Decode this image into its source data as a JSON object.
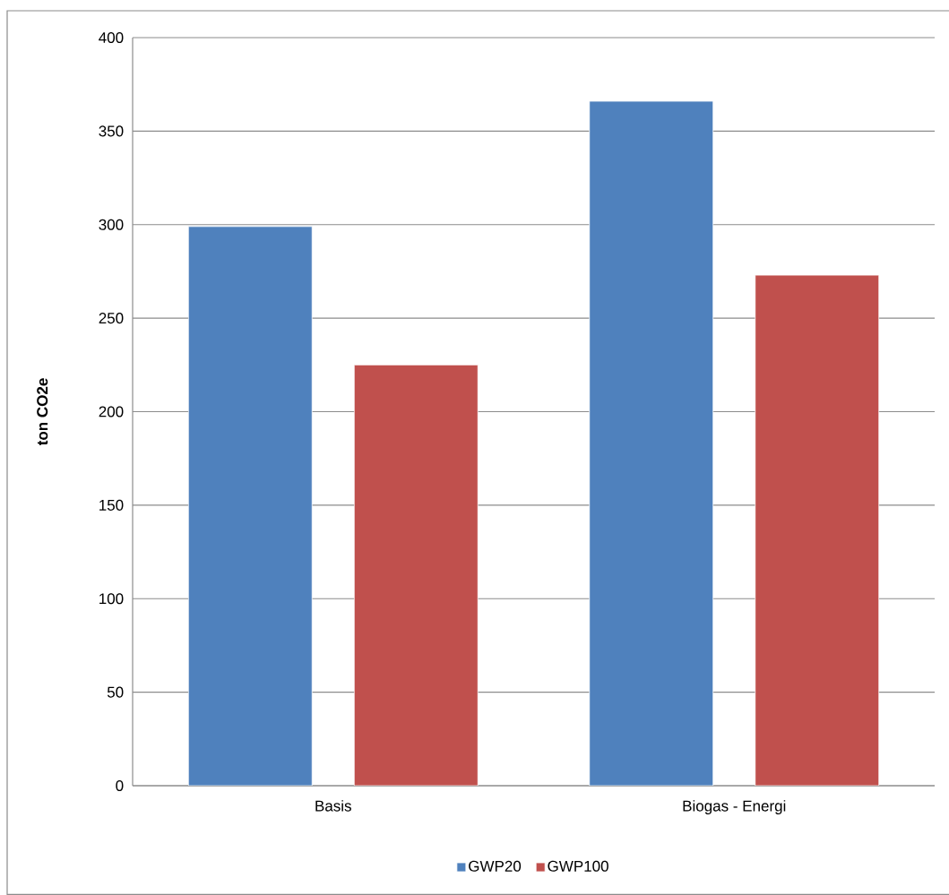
{
  "chart_data": {
    "type": "bar",
    "ylabel": "ton CO2e",
    "categories": [
      "Basis",
      "Biogas - Energi"
    ],
    "series": [
      {
        "name": "GWP20",
        "color": "#4f81bd",
        "values": [
          299,
          366
        ]
      },
      {
        "name": "GWP100",
        "color": "#c0504d",
        "values": [
          225,
          273
        ]
      }
    ],
    "ylim": [
      0,
      400
    ],
    "yticks": [
      0,
      50,
      100,
      150,
      200,
      250,
      300,
      350,
      400
    ],
    "grid": "y",
    "legend": "bottom"
  }
}
